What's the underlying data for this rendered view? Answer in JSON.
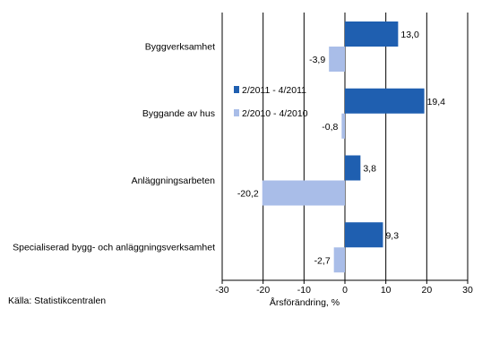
{
  "chart_data": {
    "type": "bar",
    "orientation": "horizontal",
    "categories": [
      "Byggverksamhet",
      "Byggande av hus",
      "Anläggningsarbeten",
      "Specialiserad bygg- och anläggningsverksamhet"
    ],
    "series": [
      {
        "name": "2/2011 - 4/2011",
        "values": [
          13.0,
          19.4,
          3.8,
          9.3
        ],
        "labels": [
          "13,0",
          "19,4",
          "3,8",
          "9,3"
        ],
        "color": "#1f5fb0"
      },
      {
        "name": "2/2010 - 4/2010",
        "values": [
          -3.9,
          -0.8,
          -20.2,
          -2.7
        ],
        "labels": [
          "-3,9",
          "-0,8",
          "-20,2",
          "-2,7"
        ],
        "color": "#a9bde8"
      }
    ],
    "xlim": [
      -30,
      30
    ],
    "xticks": [
      "-30",
      "-20",
      "-10",
      "0",
      "10",
      "20",
      "30"
    ],
    "xlabel": "Årsförändring, %",
    "grid": "vertical",
    "legend_position": "inside-center-left"
  },
  "source": "Källa: Statistikcentralen"
}
